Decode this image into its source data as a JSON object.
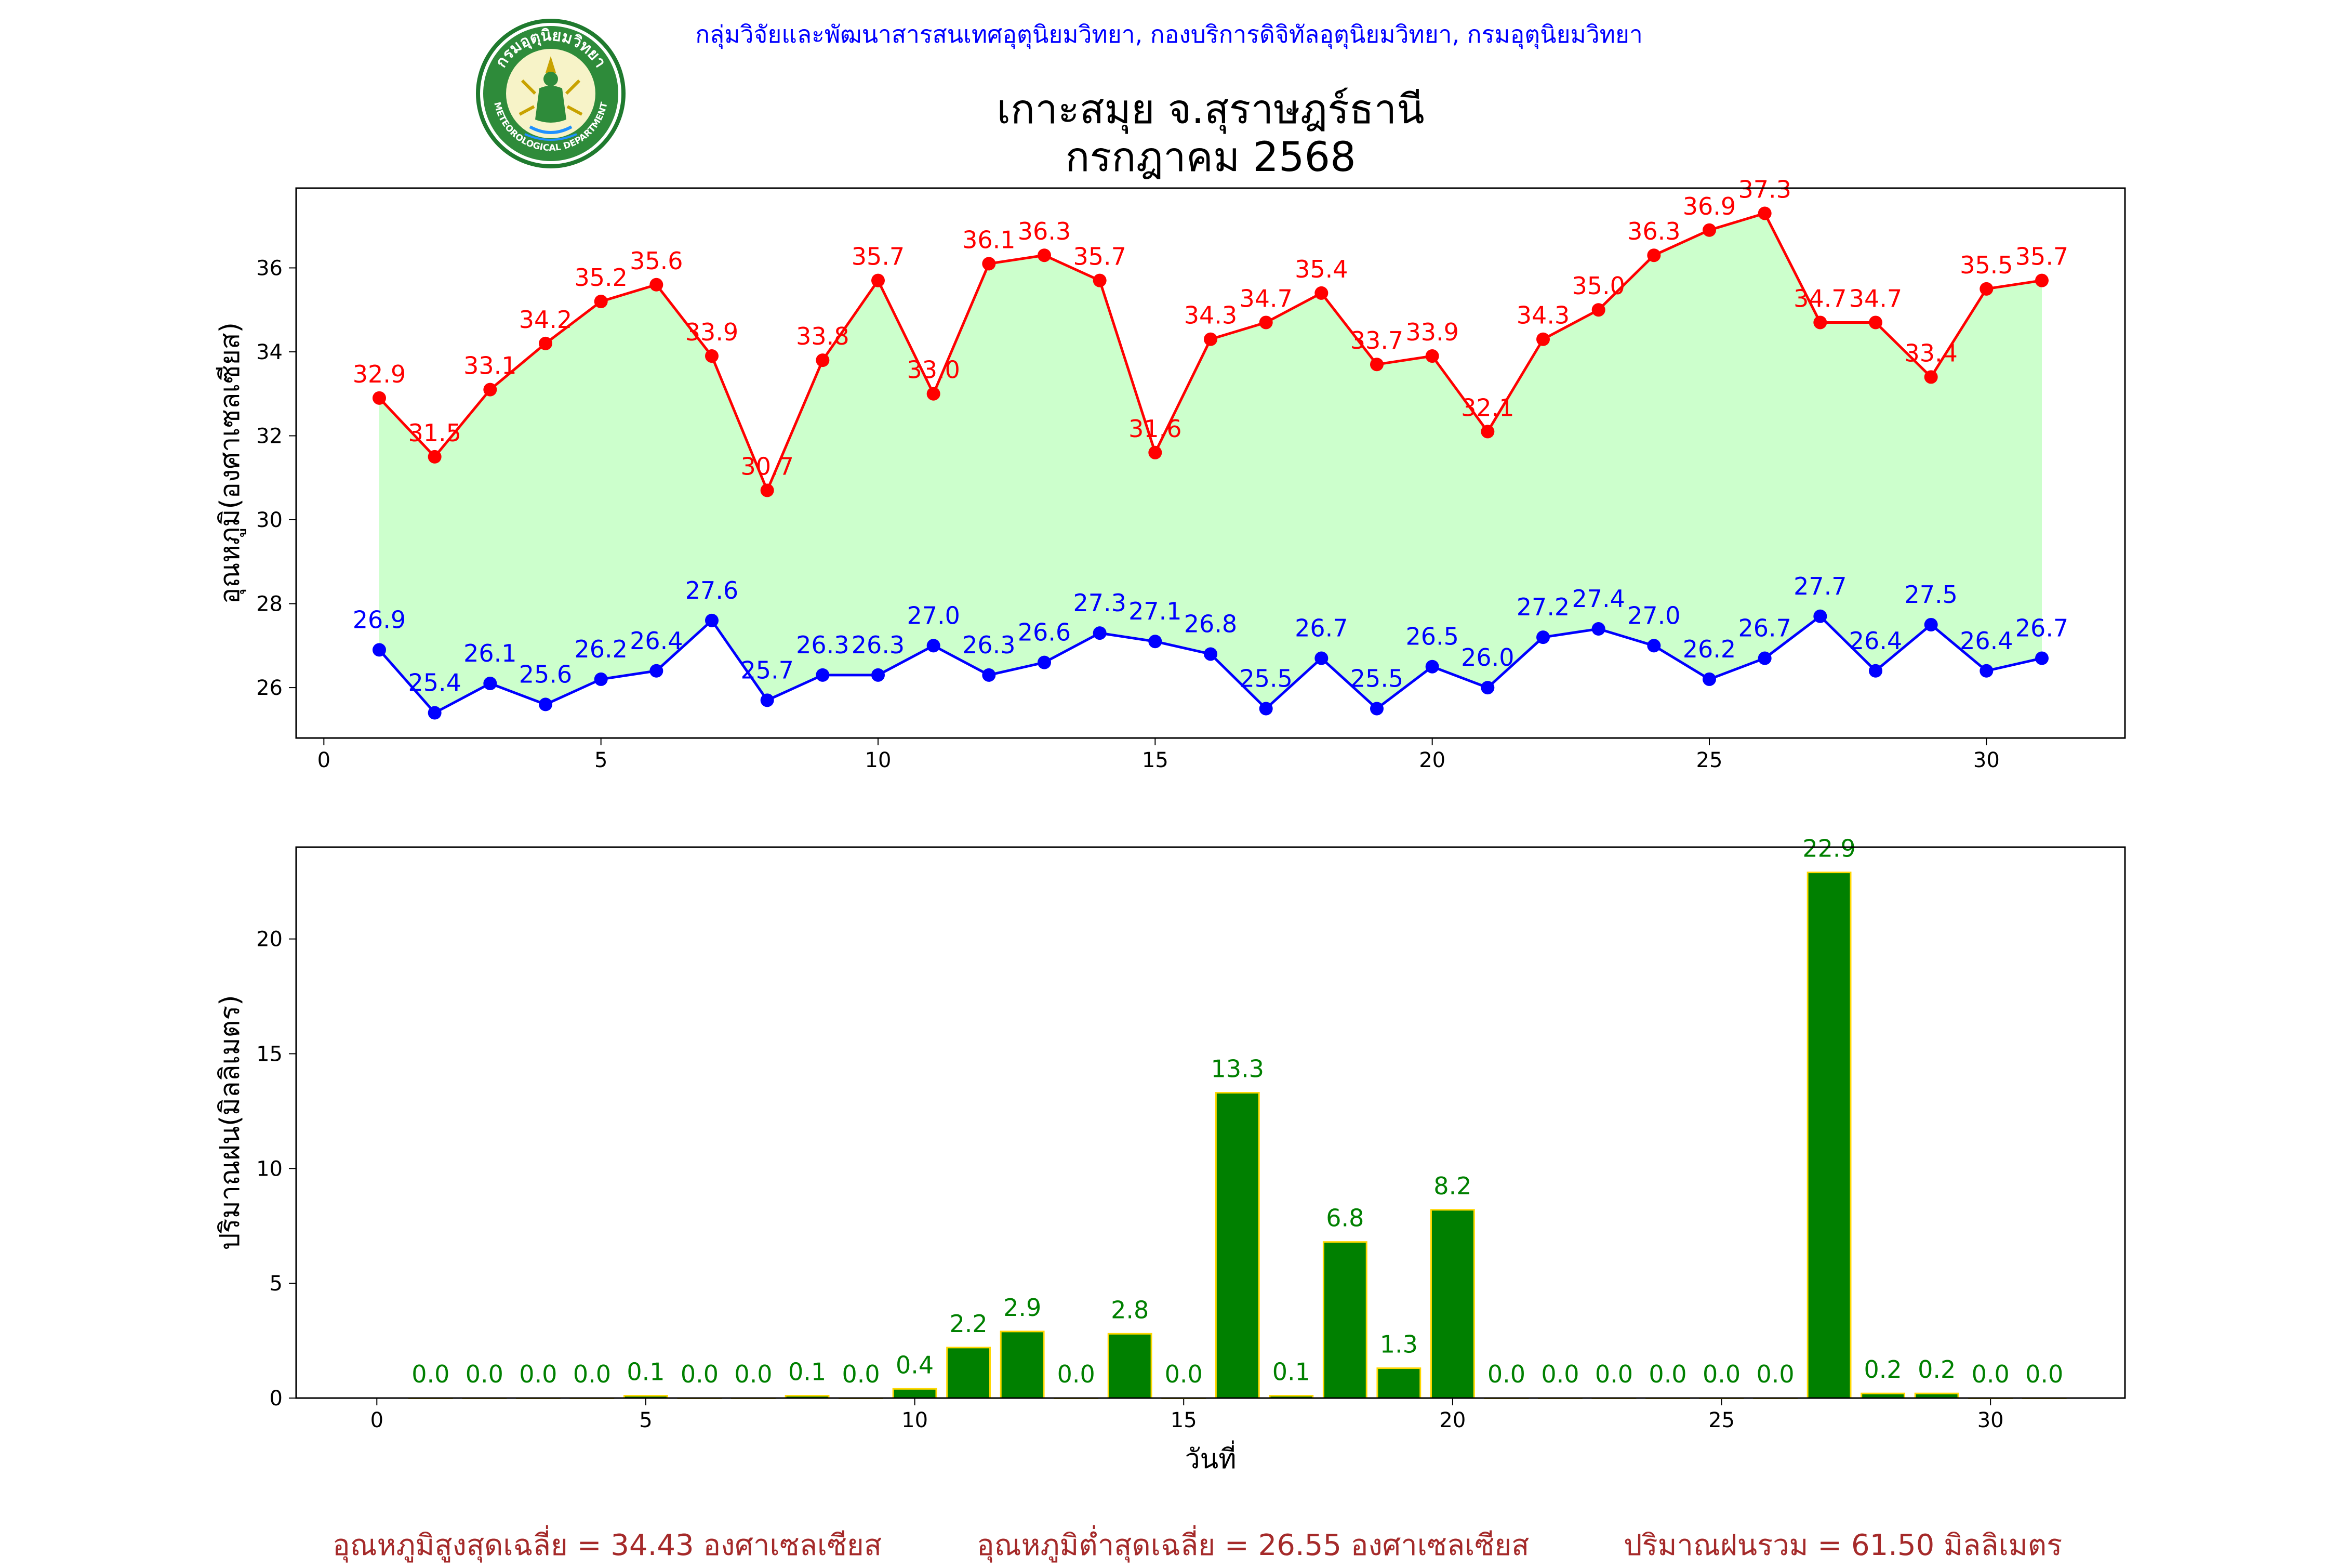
{
  "header": {
    "department": "กลุ่มวิจัยและพัฒนาสารสนเทศอุตุนิยมวิทยา, กองบริการดิจิทัลอุตุนิยมวิทยา, กรมอุตุนิยมวิทยา",
    "logo_text_top": "กรมอุตุนิยมวิทยา",
    "logo_text_bottom": "METEOROLOGICAL DEPARTMENT"
  },
  "title": {
    "line1": "เกาะสมุย จ.สุราษฎร์ธานี",
    "line2": "กรกฎาคม 2568"
  },
  "colors": {
    "max_temp": "#ff0000",
    "min_temp": "#0000ff",
    "fill": "#ccffcc",
    "rain_bar": "#008000",
    "rain_edge": "#ffd700",
    "footer": "#a52a2a",
    "header": "#0000ff"
  },
  "chart_data": [
    {
      "type": "line",
      "xlabel": "",
      "ylabel": "อุณหภูมิ(องศาเซลเซียส)",
      "xlim": [
        -0.5,
        32.5
      ],
      "ylim": [
        24.8,
        37.9
      ],
      "xticks": [
        0,
        5,
        10,
        15,
        20,
        25,
        30
      ],
      "yticks": [
        26,
        28,
        30,
        32,
        34,
        36
      ],
      "x": [
        1,
        2,
        3,
        4,
        5,
        6,
        7,
        8,
        9,
        10,
        11,
        12,
        13,
        14,
        15,
        16,
        17,
        18,
        19,
        20,
        21,
        22,
        23,
        24,
        25,
        26,
        27,
        28,
        29,
        30,
        31
      ],
      "fill_between": true,
      "series": [
        {
          "key": "max",
          "values": [
            32.9,
            31.5,
            33.1,
            34.2,
            35.2,
            35.6,
            33.9,
            30.7,
            33.8,
            35.7,
            33.0,
            36.1,
            36.3,
            35.7,
            31.6,
            34.3,
            34.7,
            35.4,
            33.7,
            33.9,
            32.1,
            34.3,
            35.0,
            36.3,
            36.9,
            37.3,
            34.7,
            34.7,
            33.4,
            35.5,
            35.7
          ],
          "labels": [
            "32.9",
            "31.5",
            "33.1",
            "34.2",
            "35.2",
            "35.6",
            "33.9",
            "30.7",
            "33.8",
            "35.7",
            "33.0",
            "36.1",
            "36.3",
            "35.7",
            "31.6",
            "34.3",
            "34.7",
            "35.4",
            "33.7",
            "33.9",
            "32.1",
            "34.3",
            "35.0",
            "36.3",
            "36.9",
            "37.3",
            "34.7",
            "34.7",
            "33.4",
            "35.5",
            "35.7"
          ]
        },
        {
          "key": "min",
          "values": [
            26.9,
            25.4,
            26.1,
            25.6,
            26.2,
            26.4,
            27.6,
            25.7,
            26.3,
            26.3,
            27.0,
            26.3,
            26.6,
            27.3,
            27.1,
            26.8,
            25.5,
            26.7,
            25.5,
            26.5,
            26.0,
            27.2,
            27.4,
            27.0,
            26.2,
            26.7,
            27.7,
            26.4,
            27.5,
            26.4,
            26.7
          ],
          "labels": [
            "26.9",
            "25.4",
            "26.1",
            "25.6",
            "26.2",
            "26.4",
            "27.6",
            "25.7",
            "26.3",
            "26.3",
            "27.0",
            "26.3",
            "26.6",
            "27.3",
            "27.1",
            "26.8",
            "25.5",
            "26.7",
            "25.5",
            "26.5",
            "26.0",
            "27.2",
            "27.4",
            "27.0",
            "26.2",
            "26.7",
            "27.7",
            "26.4",
            "27.5",
            "26.4",
            "26.7"
          ]
        }
      ]
    },
    {
      "type": "bar",
      "xlabel": "วันที่",
      "ylabel": "ปริมาณฝน(มิลลิเมตร)",
      "xlim": [
        -1.5,
        32.5
      ],
      "ylim": [
        0,
        24.0
      ],
      "xticks": [
        0,
        5,
        10,
        15,
        20,
        25,
        30
      ],
      "yticks": [
        0,
        5,
        10,
        15,
        20
      ],
      "x": [
        1,
        2,
        3,
        4,
        5,
        6,
        7,
        8,
        9,
        10,
        11,
        12,
        13,
        14,
        15,
        16,
        17,
        18,
        19,
        20,
        21,
        22,
        23,
        24,
        25,
        26,
        27,
        28,
        29,
        30,
        31
      ],
      "values": [
        0.0,
        0.0,
        0.0,
        0.0,
        0.1,
        0.0,
        0.0,
        0.1,
        0.0,
        0.4,
        2.2,
        2.9,
        0.0,
        2.8,
        0.0,
        13.3,
        0.1,
        6.8,
        1.3,
        8.2,
        0.0,
        0.0,
        0.0,
        0.0,
        0.0,
        0.0,
        22.9,
        0.2,
        0.2,
        0.0,
        0.0
      ],
      "labels": [
        "0.0",
        "0.0",
        "0.0",
        "0.0",
        "0.1",
        "0.0",
        "0.0",
        "0.1",
        "0.0",
        "0.4",
        "2.2",
        "2.9",
        "0.0",
        "2.8",
        "0.0",
        "13.3",
        "0.1",
        "6.8",
        "1.3",
        "8.2",
        "0.0",
        "0.0",
        "0.0",
        "0.0",
        "0.0",
        "0.0",
        "22.9",
        "0.2",
        "0.2",
        "0.0",
        "0.0"
      ]
    }
  ],
  "footer": {
    "avg_max": "อุณหภูมิสูงสุดเฉลี่ย = 34.43 องศาเซลเซียส",
    "avg_min": "อุณหภูมิต่ำสุดเฉลี่ย = 26.55 องศาเซลเซียส",
    "total_rain": "ปริมาณฝนรวม = 61.50 มิลลิเมตร"
  }
}
